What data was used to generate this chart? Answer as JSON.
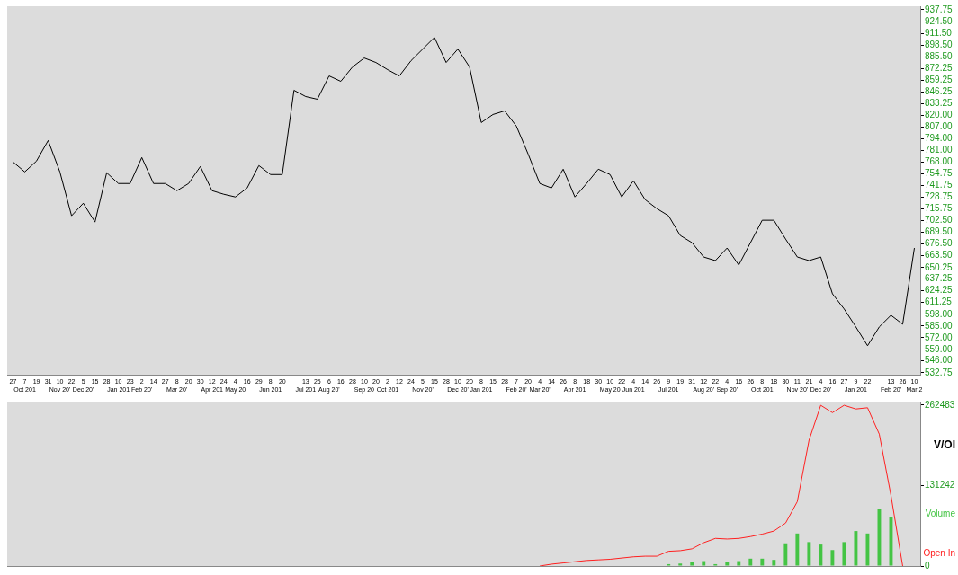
{
  "chart_data": [
    {
      "type": "line",
      "categories": [
        "27",
        "7\nOct 201",
        "19",
        "31",
        "10\nNov 20'",
        "22",
        "5\nDec 20'",
        "15",
        "28",
        "10\nJan 201",
        "23",
        "2\nFeb 20'",
        "14",
        "27",
        "8\nMar 20'",
        "20",
        "30",
        "12\nApr 201",
        "24",
        "4\nMay 20",
        "16",
        "29",
        "8\nJun 201",
        "20",
        null,
        "13\nJul 201",
        "25",
        "6\nAug 20'",
        "16",
        "28",
        "10\nSep 20",
        "20",
        "2\nOct 201",
        "12",
        "24",
        "5\nNov 20'",
        "15",
        "28",
        "10\nDec 20'",
        "20",
        "8\nJan 201",
        "15",
        "28",
        "7\nFeb 20'",
        "20",
        "4\nMar 20'",
        "14",
        "26",
        "8\nApr 201",
        "18",
        "30",
        "10\nMay 20",
        "22",
        "4\nJun 201",
        "14",
        "26",
        "9\nJul 201",
        "19",
        "31",
        "12\nAug 20'",
        "22",
        "4\nSep 20'",
        "16",
        "26",
        "8\nOct 201",
        "18",
        "30",
        "11\nNov 20'",
        "21",
        "4\nDec 20'",
        "16",
        "27",
        "9\nJan 201",
        "22",
        null,
        "13\nFeb 20'",
        "26",
        "10\nMar 2"
      ],
      "values": [
        768,
        757,
        769,
        792,
        757,
        708,
        722,
        701,
        756,
        744,
        744,
        773,
        744,
        744,
        736,
        744,
        763,
        736,
        732,
        729,
        739,
        764,
        754,
        754,
        848,
        841,
        838,
        864,
        858,
        874,
        884,
        879,
        871,
        864,
        881,
        894,
        907,
        879,
        894,
        874,
        812,
        821,
        825,
        808,
        777,
        744,
        739,
        760,
        729,
        744,
        760,
        754,
        729,
        747,
        726,
        716,
        708,
        686,
        678,
        662,
        658,
        672,
        653,
        678,
        703,
        703,
        682,
        662,
        658,
        662,
        621,
        604,
        584,
        563,
        584,
        597,
        587,
        672
      ],
      "color": "#000000",
      "marker": "none",
      "legend": false,
      "ylim": [
        530.5,
        941.75
      ],
      "yticks": [
        937.75,
        {
          "value": 924.5,
          "label": "924.50"
        },
        {
          "value": 911.5,
          "label": "911.50"
        },
        {
          "value": 898.5,
          "label": "898.50"
        },
        {
          "value": 885.5,
          "label": "885.50"
        },
        872.25,
        859.25,
        846.25,
        833.25,
        {
          "value": 820,
          "label": "820.00"
        },
        {
          "value": 807,
          "label": "807.00"
        },
        {
          "value": 794,
          "label": "794.00"
        },
        {
          "value": 781,
          "label": "781.00"
        },
        {
          "value": 768,
          "label": "768.00"
        },
        754.75,
        741.75,
        728.75,
        715.75,
        {
          "value": 702.5,
          "label": "702.50"
        },
        {
          "value": 689.5,
          "label": "689.50"
        },
        {
          "value": 676.5,
          "label": "676.50"
        },
        {
          "value": 663.5,
          "label": "663.50"
        },
        650.25,
        637.25,
        624.25,
        611.25,
        {
          "value": 598,
          "label": "598.00"
        },
        {
          "value": 585,
          "label": "585.00"
        },
        {
          "value": 572,
          "label": "572.00"
        },
        {
          "value": 559,
          "label": "559.00"
        },
        {
          "value": 546,
          "label": "546.00"
        },
        532.75
      ]
    },
    {
      "type": "bar",
      "title": "V/OI",
      "categories": [
        null,
        null,
        null,
        null,
        null,
        null,
        null,
        null,
        null,
        null,
        null,
        null,
        null,
        null,
        null,
        null,
        null,
        null,
        null,
        null,
        null,
        null,
        null,
        null,
        null,
        null,
        null,
        null,
        null,
        null,
        null,
        null,
        null,
        null,
        null,
        null,
        null,
        null,
        null,
        null,
        null,
        null,
        null,
        null,
        null,
        null,
        null,
        null,
        null,
        null,
        null,
        null,
        null,
        null,
        null,
        null,
        null,
        null,
        null,
        null,
        null,
        null,
        null,
        null,
        null,
        null,
        null,
        null,
        null,
        null,
        null,
        null,
        null,
        null,
        null,
        null,
        null,
        null
      ],
      "series": [
        {
          "name": "Volume",
          "type": "bar",
          "color": "#44c444",
          "values": [
            null,
            null,
            null,
            null,
            null,
            null,
            null,
            null,
            null,
            null,
            null,
            null,
            null,
            null,
            null,
            null,
            null,
            null,
            null,
            null,
            null,
            null,
            null,
            null,
            null,
            null,
            null,
            null,
            null,
            null,
            null,
            null,
            null,
            null,
            null,
            null,
            null,
            null,
            null,
            null,
            null,
            null,
            null,
            null,
            null,
            null,
            null,
            null,
            null,
            null,
            null,
            null,
            null,
            null,
            null,
            null,
            3000,
            4000,
            6000,
            8000,
            3000,
            6000,
            8000,
            12000,
            12000,
            10000,
            37000,
            53000,
            39000,
            35000,
            26000,
            39000,
            57000,
            53000,
            93000,
            80000,
            null,
            null
          ]
        },
        {
          "name": "Open In",
          "type": "line",
          "color": "#ff2020",
          "values": [
            null,
            null,
            null,
            null,
            null,
            null,
            null,
            null,
            null,
            null,
            null,
            null,
            null,
            null,
            null,
            null,
            null,
            null,
            null,
            null,
            null,
            null,
            null,
            null,
            null,
            null,
            null,
            null,
            null,
            null,
            null,
            null,
            null,
            null,
            null,
            null,
            null,
            null,
            null,
            null,
            null,
            null,
            null,
            null,
            null,
            0,
            3000,
            5000,
            7000,
            9000,
            10000,
            11000,
            13000,
            15000,
            16000,
            16000,
            24000,
            25000,
            28000,
            38000,
            45000,
            44000,
            45000,
            48000,
            52000,
            57000,
            70000,
            105000,
            205000,
            262000,
            250000,
            262000,
            256000,
            258000,
            215000,
            115000,
            0,
            null
          ]
        }
      ],
      "marker": "none",
      "legend": "right",
      "tick_labels": "y",
      "ylim": [
        0,
        268000
      ],
      "yticks": [
        0,
        131242,
        262483
      ]
    }
  ]
}
